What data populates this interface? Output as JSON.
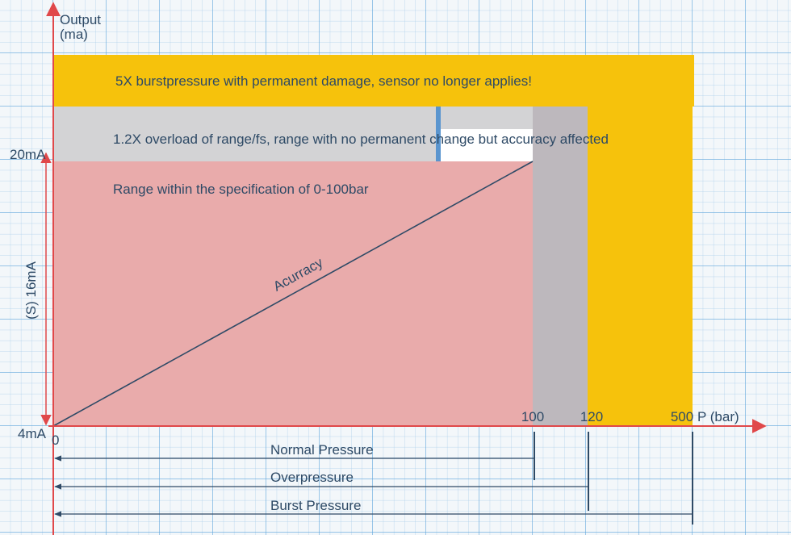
{
  "axis": {
    "y_title_line1": "Output",
    "y_title_line2": "(ma)",
    "x_title": "P (bar)",
    "y_labels": {
      "top": "20mA",
      "span": "(S) 16mA",
      "bottom": "4mA"
    },
    "x_labels": [
      "0",
      "100",
      "120",
      "500"
    ]
  },
  "zones": {
    "burst": "5X burstpressure with permanent damage, sensor no longer applies!",
    "overload": "1.2X overload of range/fs, range with no permanent change but accuracy affected",
    "range": "Range within the specification of 0-100bar"
  },
  "line_label": "Acurracy",
  "ranges": [
    "Normal Pressure",
    "Overpressure",
    "Burst Pressure"
  ]
}
